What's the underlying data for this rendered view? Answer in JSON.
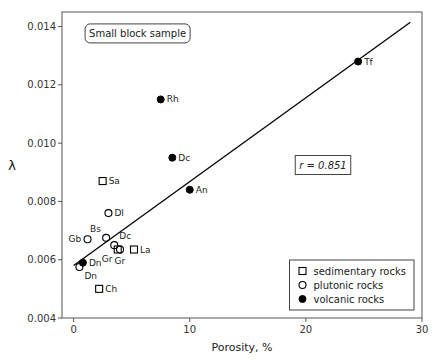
{
  "chart_data": {
    "type": "scatter",
    "xlabel": "Porosity, %",
    "ylabel": "λ",
    "xlim": [
      -1,
      30
    ],
    "ylim": [
      0.004,
      0.0145
    ],
    "xticks": [
      0,
      10,
      20,
      30
    ],
    "yticks": [
      0.004,
      0.006,
      0.008,
      {
        "value": 0.01,
        "label": "0.010"
      },
      0.012,
      0.014
    ],
    "legend": "lower right",
    "annotations": [
      "Small block sample",
      "r = 0.851"
    ],
    "series": [
      {
        "type": "line",
        "color": "#000000",
        "line_style": "solid",
        "x": [
          0,
          29
        ],
        "values": [
          0.0058,
          0.01415
        ]
      },
      {
        "name": "sedimentary rocks",
        "type": "scatter",
        "marker": "square-open",
        "color": "#000000",
        "x": [
          2.5,
          3.8,
          5.2,
          2.2
        ],
        "values": [
          0.0087,
          0.00635,
          0.00635,
          0.005
        ],
        "labels": [
          "Sa",
          "Gr",
          "La",
          "Ch"
        ]
      },
      {
        "name": "plutonic rocks",
        "type": "scatter",
        "marker": "circle-open",
        "color": "#000000",
        "x": [
          1.2,
          3.0,
          3.5,
          2.8,
          0.5,
          4.0
        ],
        "values": [
          0.0067,
          0.0076,
          0.0065,
          0.00675,
          0.00575,
          0.00635
        ],
        "labels": [
          "Gb",
          "Dl",
          "Dc",
          "Bs",
          "Dn",
          "Gr"
        ]
      },
      {
        "name": "volcanic rocks",
        "type": "scatter",
        "marker": "circle",
        "color": "#000000",
        "x": [
          0.8,
          7.5,
          8.5,
          10.0,
          24.5
        ],
        "values": [
          0.0059,
          0.0115,
          0.0095,
          0.0084,
          0.0128
        ],
        "labels": [
          "Dn",
          "Rh",
          "Dc",
          "An",
          "Tf"
        ]
      }
    ]
  }
}
